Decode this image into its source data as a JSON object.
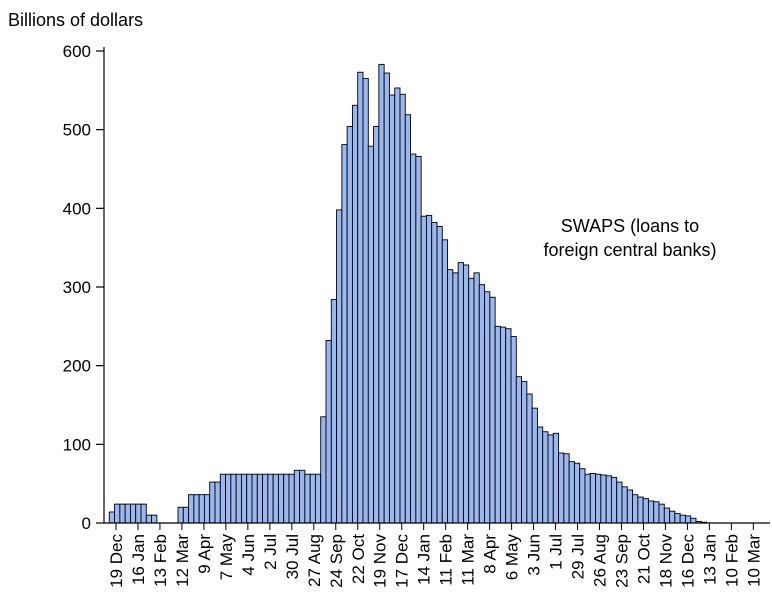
{
  "chart_data": {
    "type": "bar",
    "ylabel": "Billions of dollars",
    "ylim": [
      0,
      600
    ],
    "yticks": [
      0,
      100,
      200,
      300,
      400,
      500,
      600
    ],
    "grid": false,
    "bar_color": "#9bb7f0",
    "bar_edge_color": "#000000",
    "x_tick_labels": [
      "19 Dec",
      "16 Jan",
      "13 Feb",
      "12 Mar",
      "9 Apr",
      "7 May",
      "4 Jun",
      "2 Jul",
      "30 Jul",
      "27 Aug",
      "24 Sep",
      "22 Oct",
      "19 Nov",
      "17 Dec",
      "14 Jan",
      "11 Feb",
      "11 Mar",
      "8 Apr",
      "6 May",
      "3 Jun",
      "1 Jul",
      "29 Jul",
      "26 Aug",
      "23 Sep",
      "21 Oct",
      "18 Nov",
      "16 Dec",
      "13 Jan",
      "10 Feb",
      "10 Mar"
    ],
    "annotation": [
      "SWAPS (loans to",
      "foreign central banks)"
    ],
    "series": [
      {
        "values": [
          0,
          14,
          24,
          24,
          24,
          24,
          24,
          24,
          10,
          10,
          0,
          0,
          0,
          0,
          20,
          20,
          36,
          36,
          36,
          36,
          52,
          52,
          62,
          62,
          62,
          62,
          62,
          62,
          62,
          62,
          62,
          62,
          62,
          62,
          62,
          62,
          67,
          67,
          62,
          62,
          62,
          135,
          232,
          284,
          398,
          481,
          504,
          531,
          573,
          565,
          479,
          504,
          583,
          572,
          544,
          553,
          545,
          519,
          469,
          466,
          390,
          391,
          382,
          377,
          360,
          322,
          318,
          331,
          328,
          311,
          318,
          303,
          294,
          287,
          250,
          249,
          247,
          237,
          186,
          180,
          164,
          146,
          122,
          116,
          112,
          114,
          89,
          88,
          78,
          76,
          69,
          62,
          63,
          62,
          61,
          60,
          58,
          52,
          46,
          42,
          36,
          33,
          31,
          28,
          27,
          24,
          19,
          15,
          12,
          10,
          9,
          6,
          2,
          1,
          0,
          0,
          0,
          0,
          0,
          0,
          0,
          0,
          0,
          0,
          0,
          0
        ]
      }
    ]
  }
}
